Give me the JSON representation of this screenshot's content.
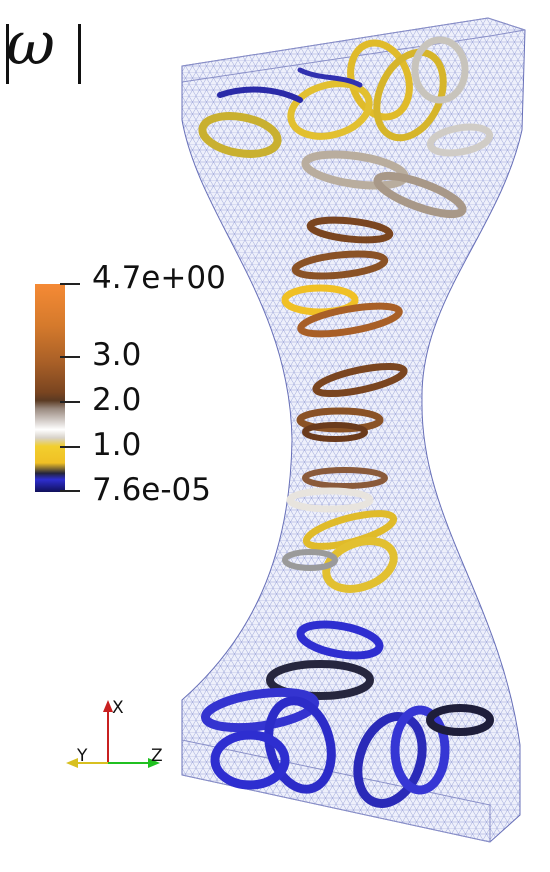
{
  "title": "ω",
  "colorbar": {
    "labels": [
      "4.7e+00",
      "3.0",
      "2.0",
      "1.0",
      "7.6e-05"
    ],
    "colors": [
      "#f58a35",
      "#a85f27",
      "#5b3a22",
      "#ffffff",
      "#f2cf2e",
      "#24243c",
      "#2e2ed0"
    ]
  },
  "axes": {
    "x": "X",
    "y": "Y",
    "z": "Z"
  },
  "mesh_color": "#9aa3d8"
}
